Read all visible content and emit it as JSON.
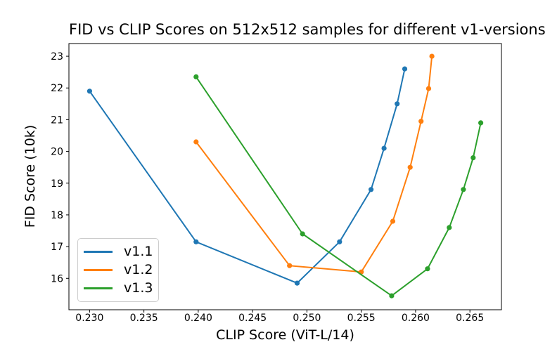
{
  "chart_data": {
    "type": "line",
    "title": "FID vs CLIP Scores on 512x512 samples for different v1-versions",
    "xlabel": "CLIP Score (ViT-L/14)",
    "ylabel": "FID Score (10k)",
    "xlim": [
      0.2281,
      0.2679
    ],
    "ylim": [
      15.01,
      23.4
    ],
    "x_ticks": [
      0.23,
      0.235,
      0.24,
      0.245,
      0.25,
      0.255,
      0.26,
      0.265
    ],
    "x_tick_labels": [
      "0.230",
      "0.235",
      "0.240",
      "0.245",
      "0.250",
      "0.255",
      "0.260",
      "0.265"
    ],
    "y_ticks": [
      16,
      17,
      18,
      19,
      20,
      21,
      22,
      23
    ],
    "y_tick_labels": [
      "16",
      "17",
      "18",
      "19",
      "20",
      "21",
      "22",
      "23"
    ],
    "grid": false,
    "legend_position": "lower left",
    "marker": "circle",
    "series": [
      {
        "name": "v1.1",
        "color": "#1f77b4",
        "points": [
          [
            0.23,
            21.9
          ],
          [
            0.2398,
            17.15
          ],
          [
            0.2491,
            15.85
          ],
          [
            0.253,
            17.15
          ],
          [
            0.2559,
            18.8
          ],
          [
            0.2571,
            20.1
          ],
          [
            0.2583,
            21.5
          ],
          [
            0.259,
            22.6
          ]
        ]
      },
      {
        "name": "v1.2",
        "color": "#ff7f0e",
        "points": [
          [
            0.2398,
            20.3
          ],
          [
            0.2484,
            16.4
          ],
          [
            0.255,
            16.2
          ],
          [
            0.2579,
            17.8
          ],
          [
            0.2595,
            19.5
          ],
          [
            0.2605,
            20.95
          ],
          [
            0.2612,
            21.98
          ],
          [
            0.2615,
            23.0
          ]
        ]
      },
      {
        "name": "v1.3",
        "color": "#2ca02c",
        "points": [
          [
            0.2398,
            22.35
          ],
          [
            0.2496,
            17.4
          ],
          [
            0.2578,
            15.45
          ],
          [
            0.2611,
            16.3
          ],
          [
            0.2631,
            17.6
          ],
          [
            0.2644,
            18.8
          ],
          [
            0.2653,
            19.8
          ],
          [
            0.266,
            20.9
          ]
        ]
      }
    ]
  }
}
